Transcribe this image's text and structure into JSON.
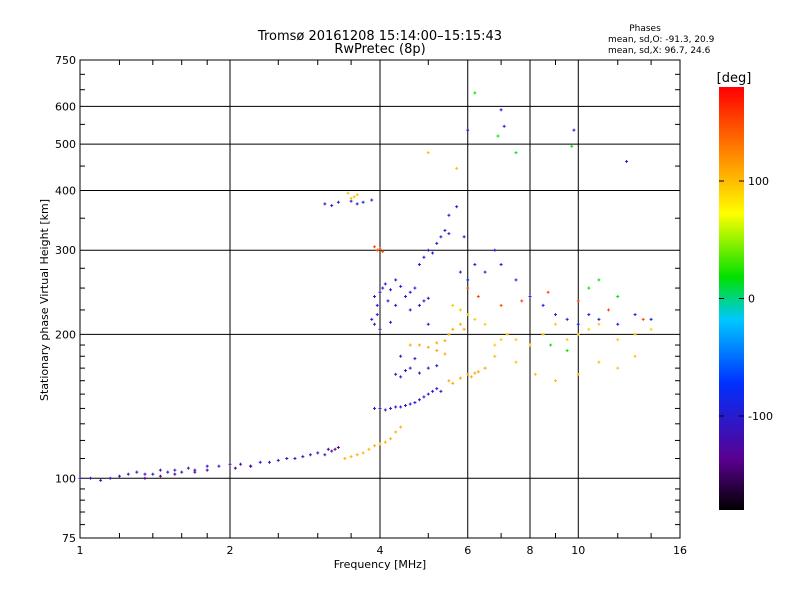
{
  "chart_data": {
    "type": "scatter",
    "title": "Tromsø 20161208 15:14:00–15:15:43",
    "subtitle": "RwPretec (8p)",
    "stats": {
      "header": "Phases",
      "line_o": "mean, sd,O: -91.3, 20.9",
      "line_x": "mean, sd,X:  96.7, 24.6"
    },
    "xlabel": "Frequency [MHz]",
    "ylabel": "Stationary phase Virtual Height [km]",
    "x_scale": "log",
    "y_scale": "log",
    "xlim": [
      1,
      16
    ],
    "ylim": [
      75,
      750
    ],
    "x_ticks": [
      1,
      2,
      4,
      6,
      8,
      10,
      16
    ],
    "x_tick_labels": [
      "1",
      "2",
      "4",
      "6",
      "8",
      "10",
      "16"
    ],
    "y_ticks": [
      75,
      100,
      200,
      300,
      400,
      500,
      600,
      750
    ],
    "y_tick_labels": [
      "75",
      "100",
      "200",
      "300",
      "400",
      "500",
      "600",
      "750"
    ],
    "grid": true,
    "colorbar": {
      "label": "[deg]",
      "range": [
        -180,
        180
      ],
      "ticks": [
        -100,
        0,
        100
      ],
      "tick_labels": [
        "-100",
        "0",
        "100"
      ],
      "colormap": "rainbow (black–purple–blue–cyan–green–yellow–orange–red)"
    },
    "series": [
      {
        "color_phase": -110,
        "points": [
          [
            1.0,
            100
          ],
          [
            1.05,
            100
          ],
          [
            1.1,
            99
          ],
          [
            1.15,
            100
          ],
          [
            1.2,
            101
          ],
          [
            1.25,
            102
          ],
          [
            1.3,
            103
          ],
          [
            1.35,
            102
          ],
          [
            1.4,
            102
          ],
          [
            1.45,
            104
          ],
          [
            1.5,
            103
          ],
          [
            1.55,
            104
          ],
          [
            1.6,
            103
          ],
          [
            1.65,
            105
          ],
          [
            1.7,
            104
          ],
          [
            1.8,
            106
          ],
          [
            1.9,
            106
          ],
          [
            2.0,
            107
          ],
          [
            2.1,
            107
          ],
          [
            2.2,
            106
          ],
          [
            2.3,
            108
          ],
          [
            2.4,
            108
          ],
          [
            2.5,
            109
          ],
          [
            2.6,
            110
          ],
          [
            2.7,
            110
          ],
          [
            2.8,
            111
          ],
          [
            2.9,
            112
          ],
          [
            3.0,
            113
          ],
          [
            3.1,
            112
          ],
          [
            3.2,
            114
          ]
        ]
      },
      {
        "color_phase": -140,
        "points": [
          [
            1.35,
            100
          ],
          [
            1.45,
            101
          ],
          [
            1.55,
            102
          ],
          [
            1.7,
            103
          ],
          [
            1.8,
            104
          ],
          [
            2.05,
            105
          ],
          [
            2.2,
            106
          ],
          [
            3.15,
            115
          ],
          [
            3.25,
            115
          ],
          [
            3.3,
            116
          ]
        ]
      },
      {
        "color_phase": 105,
        "points": [
          [
            3.4,
            110
          ],
          [
            3.5,
            111
          ],
          [
            3.6,
            112
          ],
          [
            3.7,
            113
          ],
          [
            3.8,
            115
          ],
          [
            3.9,
            117
          ],
          [
            4.0,
            118
          ],
          [
            4.1,
            119
          ],
          [
            4.2,
            121
          ],
          [
            4.3,
            125
          ],
          [
            4.4,
            128
          ]
        ]
      },
      {
        "color_phase": -100,
        "points": [
          [
            3.1,
            375
          ],
          [
            3.2,
            372
          ],
          [
            3.3,
            378
          ],
          [
            3.5,
            380
          ],
          [
            3.6,
            375
          ],
          [
            3.7,
            378
          ],
          [
            3.85,
            382
          ]
        ]
      },
      {
        "color_phase": 100,
        "points": [
          [
            3.45,
            395
          ],
          [
            3.55,
            388
          ],
          [
            3.6,
            392
          ],
          [
            3.5,
            385
          ]
        ]
      },
      {
        "color_phase": 150,
        "points": [
          [
            3.9,
            305
          ],
          [
            3.95,
            300
          ],
          [
            4.0,
            302
          ],
          [
            4.05,
            298
          ]
        ]
      },
      {
        "color_phase": -100,
        "points": [
          [
            3.9,
            240
          ],
          [
            3.95,
            230
          ],
          [
            4.0,
            245
          ],
          [
            4.05,
            250
          ],
          [
            4.1,
            255
          ],
          [
            4.15,
            235
          ],
          [
            4.2,
            248
          ],
          [
            4.3,
            260
          ],
          [
            4.4,
            252
          ],
          [
            4.5,
            240
          ],
          [
            4.6,
            245
          ],
          [
            4.7,
            250
          ],
          [
            4.8,
            230
          ],
          [
            4.9,
            235
          ],
          [
            5.0,
            238
          ],
          [
            3.85,
            215
          ],
          [
            3.9,
            210
          ],
          [
            3.95,
            220
          ],
          [
            4.0,
            205
          ],
          [
            4.2,
            212
          ],
          [
            4.3,
            230
          ],
          [
            4.6,
            225
          ],
          [
            5.0,
            210
          ]
        ]
      },
      {
        "color_phase": -95,
        "points": [
          [
            4.8,
            280
          ],
          [
            4.9,
            290
          ],
          [
            5.0,
            300
          ],
          [
            5.1,
            296
          ],
          [
            5.2,
            310
          ],
          [
            5.3,
            320
          ],
          [
            5.4,
            330
          ],
          [
            5.5,
            325
          ]
        ]
      },
      {
        "color_phase": -100,
        "points": [
          [
            3.9,
            140
          ],
          [
            4.0,
            140
          ],
          [
            4.1,
            139
          ],
          [
            4.2,
            140
          ],
          [
            4.3,
            141
          ],
          [
            4.4,
            141
          ],
          [
            4.5,
            142
          ],
          [
            4.6,
            143
          ],
          [
            4.7,
            144
          ],
          [
            4.8,
            146
          ],
          [
            4.9,
            148
          ],
          [
            5.0,
            150
          ],
          [
            5.1,
            152
          ],
          [
            5.2,
            154
          ],
          [
            5.3,
            152
          ]
        ]
      },
      {
        "color_phase": -100,
        "points": [
          [
            4.3,
            165
          ],
          [
            4.4,
            163
          ],
          [
            4.5,
            168
          ],
          [
            4.6,
            170
          ],
          [
            4.8,
            166
          ],
          [
            5.0,
            170
          ],
          [
            5.2,
            172
          ],
          [
            4.4,
            180
          ],
          [
            4.7,
            178
          ]
        ]
      },
      {
        "color_phase": 110,
        "points": [
          [
            4.6,
            190
          ],
          [
            4.8,
            190
          ],
          [
            5.0,
            188
          ],
          [
            5.2,
            192
          ],
          [
            5.4,
            194
          ],
          [
            5.5,
            200
          ],
          [
            5.6,
            205
          ],
          [
            5.8,
            210
          ],
          [
            5.9,
            205
          ],
          [
            5.2,
            185
          ],
          [
            5.4,
            182
          ]
        ]
      },
      {
        "color_phase": 110,
        "points": [
          [
            5.5,
            160
          ],
          [
            5.6,
            158
          ],
          [
            5.8,
            162
          ],
          [
            6.0,
            165
          ],
          [
            6.1,
            163
          ],
          [
            6.2,
            166
          ],
          [
            6.3,
            167
          ],
          [
            6.5,
            170
          ]
        ]
      },
      {
        "color_phase": 95,
        "points": [
          [
            5.6,
            230
          ],
          [
            5.8,
            225
          ],
          [
            6.0,
            220
          ],
          [
            6.2,
            215
          ],
          [
            6.5,
            210
          ],
          [
            6.8,
            190
          ],
          [
            7.0,
            195
          ],
          [
            7.2,
            200
          ],
          [
            7.5,
            195
          ],
          [
            8.0,
            190
          ],
          [
            8.5,
            200
          ],
          [
            9.0,
            210
          ],
          [
            9.5,
            195
          ],
          [
            10.0,
            200
          ],
          [
            10.5,
            205
          ],
          [
            11.0,
            210
          ],
          [
            12.0,
            195
          ],
          [
            13.0,
            200
          ],
          [
            14.0,
            205
          ]
        ]
      },
      {
        "color_phase": -90,
        "points": [
          [
            5.8,
            270
          ],
          [
            6.0,
            260
          ],
          [
            6.2,
            280
          ],
          [
            6.5,
            270
          ],
          [
            6.8,
            300
          ],
          [
            7.0,
            280
          ],
          [
            7.5,
            260
          ],
          [
            8.0,
            240
          ],
          [
            8.5,
            230
          ],
          [
            9.0,
            220
          ],
          [
            9.5,
            215
          ],
          [
            10.0,
            210
          ],
          [
            10.5,
            220
          ],
          [
            11.0,
            215
          ],
          [
            12.0,
            210
          ],
          [
            13.0,
            220
          ],
          [
            14.0,
            215
          ]
        ]
      },
      {
        "color_phase": 20,
        "points": [
          [
            6.2,
            640
          ],
          [
            6.9,
            520
          ],
          [
            7.5,
            480
          ],
          [
            9.7,
            495
          ],
          [
            10.5,
            250
          ],
          [
            11.0,
            260
          ],
          [
            12.0,
            240
          ],
          [
            8.8,
            190
          ],
          [
            9.5,
            185
          ]
        ]
      },
      {
        "color_phase": -100,
        "points": [
          [
            6.0,
            535
          ],
          [
            7.0,
            590
          ],
          [
            7.1,
            545
          ],
          [
            9.8,
            535
          ],
          [
            12.5,
            460
          ],
          [
            5.5,
            355
          ],
          [
            5.7,
            370
          ],
          [
            5.9,
            320
          ]
        ]
      },
      {
        "color_phase": 100,
        "points": [
          [
            5.0,
            480
          ],
          [
            5.7,
            445
          ],
          [
            6.8,
            180
          ],
          [
            7.5,
            175
          ],
          [
            8.2,
            165
          ],
          [
            9.0,
            160
          ],
          [
            10.0,
            165
          ],
          [
            11.0,
            175
          ],
          [
            12.0,
            170
          ],
          [
            13.0,
            180
          ]
        ]
      },
      {
        "color_phase": 150,
        "points": [
          [
            6.0,
            250
          ],
          [
            6.3,
            240
          ],
          [
            7.0,
            230
          ],
          [
            7.7,
            235
          ],
          [
            8.7,
            245
          ],
          [
            10.0,
            235
          ],
          [
            11.5,
            225
          ],
          [
            13.5,
            215
          ]
        ]
      }
    ]
  }
}
